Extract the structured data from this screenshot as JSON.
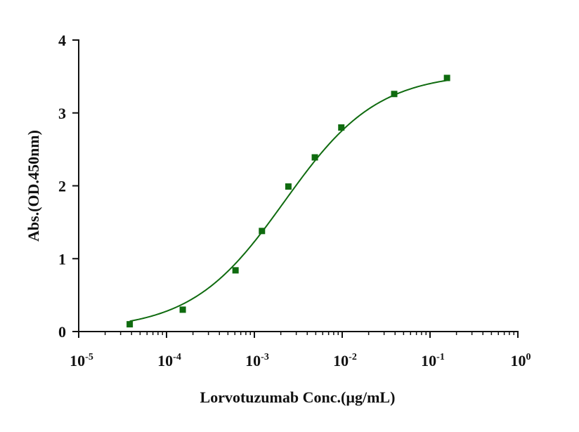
{
  "chart_data": {
    "type": "scatter",
    "title": "",
    "xlabel": "Lorvotuzumab  Conc.(µg/mL)",
    "ylabel": "Abs.(OD.450nm)",
    "x_scale": "log10",
    "xlim": [
      1e-05,
      1
    ],
    "ylim": [
      0,
      4
    ],
    "x_ticks": [
      {
        "value": 1e-05,
        "base": "10",
        "exponent": "-5"
      },
      {
        "value": 0.0001,
        "base": "10",
        "exponent": "-4"
      },
      {
        "value": 0.001,
        "base": "10",
        "exponent": "-3"
      },
      {
        "value": 0.01,
        "base": "10",
        "exponent": "-2"
      },
      {
        "value": 0.1,
        "base": "10",
        "exponent": "-1"
      },
      {
        "value": 1,
        "base": "10",
        "exponent": "0"
      }
    ],
    "y_ticks": [
      {
        "value": 0,
        "label": "0"
      },
      {
        "value": 1,
        "label": "1"
      },
      {
        "value": 2,
        "label": "2"
      },
      {
        "value": 3,
        "label": "3"
      },
      {
        "value": 4,
        "label": "4"
      }
    ],
    "grid": false,
    "legend": "none",
    "series": [
      {
        "marker": "square",
        "color": "#0f6b0f",
        "x": [
          3.81e-05,
          0.000153,
          0.00061,
          0.00122,
          0.00244,
          0.00488,
          0.00977,
          0.0391,
          0.156
        ],
        "y": [
          0.1,
          0.3,
          0.84,
          1.38,
          1.99,
          2.39,
          2.8,
          3.26,
          3.48
        ]
      }
    ],
    "fit_curve": {
      "model": "4PL",
      "color": "#0f6b0f",
      "bottom": 0.02,
      "top": 3.55,
      "ec50": 0.0022,
      "hill": 0.82
    }
  }
}
